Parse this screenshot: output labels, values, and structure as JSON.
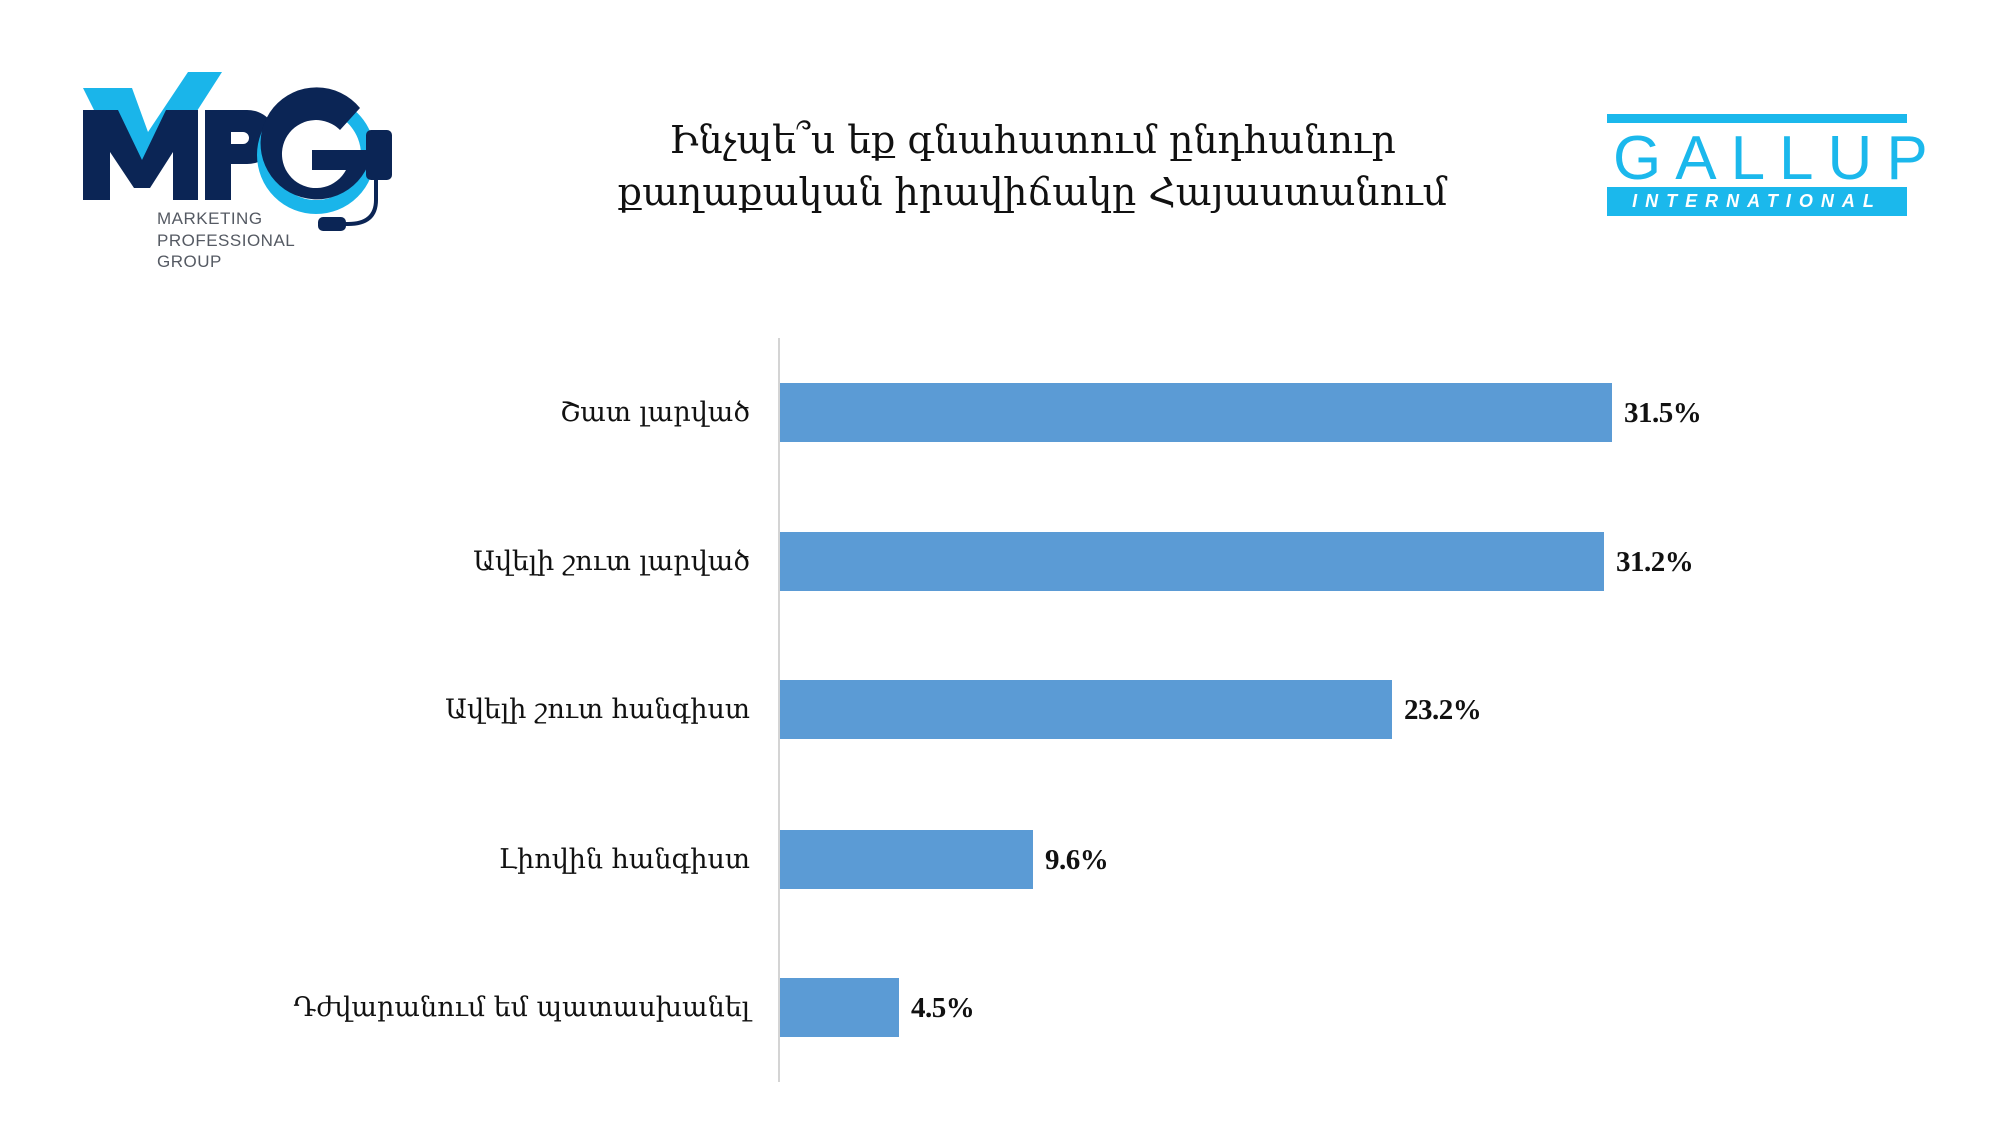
{
  "logos": {
    "left": {
      "mark": "MPG",
      "lines": [
        "MARKETING",
        "PROFESSIONAL",
        "GROUP"
      ],
      "colors": {
        "navy": "#0b2555",
        "cyan": "#1ab5ea"
      }
    },
    "right": {
      "word": "GALLUP",
      "band": "INTERNATIONAL",
      "color": "#1bb8ec"
    }
  },
  "title": {
    "line1": "Ինչպե՞ս եք գնահատում ընդհանուր",
    "line2": "քաղաքական իրավիճակը Հայաստանում"
  },
  "chart_data": {
    "type": "bar",
    "orientation": "horizontal",
    "title": "Ինչպե՞ս եք գնահատում ընդհանուր քաղաքական իրավիճակը Հայաստանում",
    "categories": [
      "Շատ լարված",
      "Ավելի շուտ  լարված",
      "Ավելի շուտ հանգիստ",
      "Լիովին հանգիստ",
      "Դժվարանում եմ պատասխանել"
    ],
    "values": [
      31.5,
      31.2,
      23.2,
      9.6,
      4.5
    ],
    "value_labels": [
      "31.5%",
      "31.2%",
      "23.2%",
      "9.6%",
      "4.5%"
    ],
    "unit": "%",
    "xlabel": "",
    "ylabel": "",
    "grid": false,
    "legend": null,
    "bar_color": "#5b9bd5"
  }
}
